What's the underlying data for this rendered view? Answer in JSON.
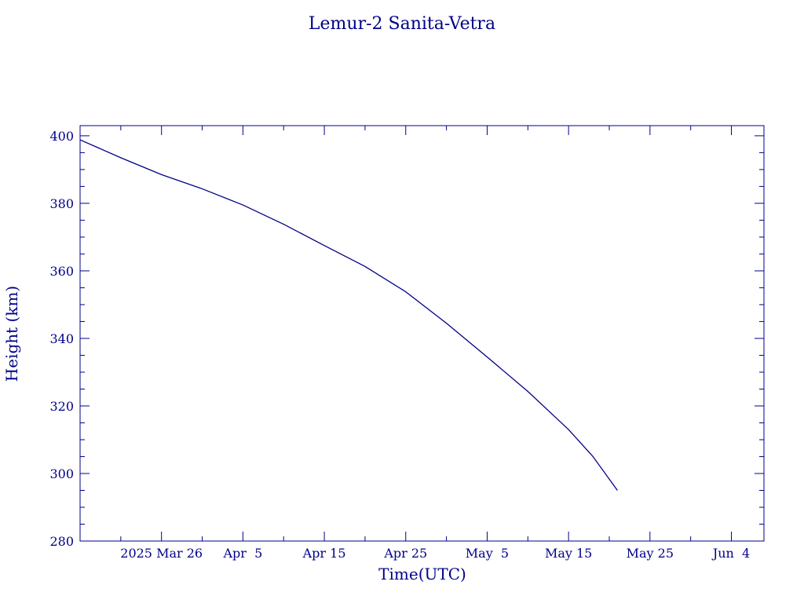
{
  "colors": {
    "ink": "#00008b",
    "background": "#ffffff"
  },
  "chart_data": {
    "type": "line",
    "title": "Lemur-2 Sanita-Vetra",
    "xlabel": "Time(UTC)",
    "ylabel": "Height (km)",
    "xlim": [
      "2025-03-16",
      "2025-06-08"
    ],
    "ylim": [
      280,
      403
    ],
    "x_ticks": [
      {
        "date": "2025-03-26",
        "label": "2025 Mar 26"
      },
      {
        "date": "2025-04-05",
        "label": "Apr  5"
      },
      {
        "date": "2025-04-15",
        "label": "Apr 15"
      },
      {
        "date": "2025-04-25",
        "label": "Apr 25"
      },
      {
        "date": "2025-05-05",
        "label": "May  5"
      },
      {
        "date": "2025-05-15",
        "label": "May 15"
      },
      {
        "date": "2025-05-25",
        "label": "May 25"
      },
      {
        "date": "2025-06-04",
        "label": "Jun  4"
      }
    ],
    "y_ticks": [
      280,
      300,
      320,
      340,
      360,
      380,
      400
    ],
    "grid": false,
    "series": [
      {
        "points": [
          {
            "x": "2025-03-16",
            "y": 398.8
          },
          {
            "x": "2025-03-21",
            "y": 393.5
          },
          {
            "x": "2025-03-26",
            "y": 388.5
          },
          {
            "x": "2025-03-31",
            "y": 384.3
          },
          {
            "x": "2025-04-05",
            "y": 379.5
          },
          {
            "x": "2025-04-10",
            "y": 373.8
          },
          {
            "x": "2025-04-15",
            "y": 367.5
          },
          {
            "x": "2025-04-20",
            "y": 361.3
          },
          {
            "x": "2025-04-25",
            "y": 353.8
          },
          {
            "x": "2025-04-30",
            "y": 344.5
          },
          {
            "x": "2025-05-05",
            "y": 334.5
          },
          {
            "x": "2025-05-10",
            "y": 324.3
          },
          {
            "x": "2025-05-15",
            "y": 313.0
          },
          {
            "x": "2025-05-18",
            "y": 305.0
          },
          {
            "x": "2025-05-21",
            "y": 295.0
          }
        ]
      }
    ]
  }
}
